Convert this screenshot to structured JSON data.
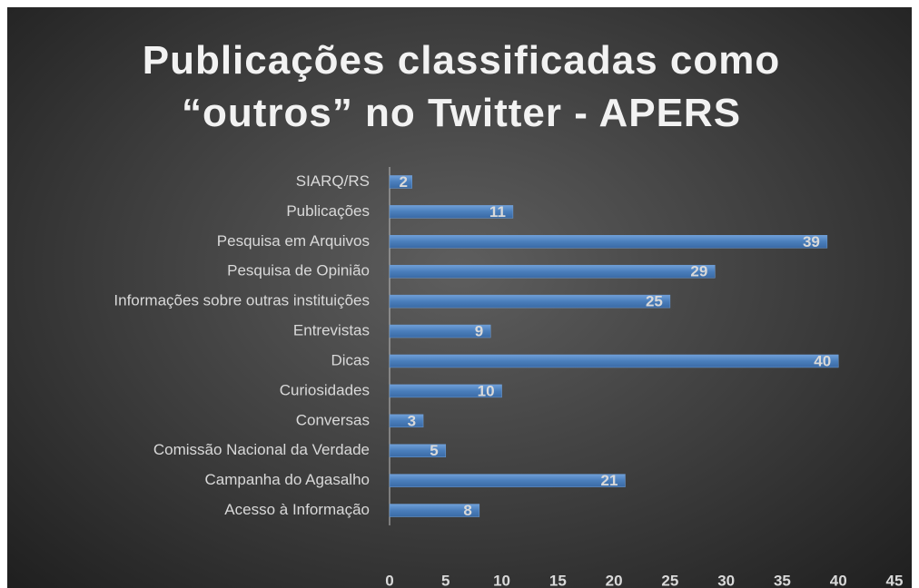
{
  "chart_data": {
    "type": "bar",
    "orientation": "horizontal",
    "title": "Publicações classificadas como “outros” no Twitter - APERS",
    "categories": [
      "SIARQ/RS",
      "Publicações",
      "Pesquisa em Arquivos",
      "Pesquisa de Opinião",
      "Informações sobre outras instituições",
      "Entrevistas",
      "Dicas",
      "Curiosidades",
      "Conversas",
      "Comissão Nacional da Verdade",
      "Campanha do Agasalho",
      "Acesso à Informação"
    ],
    "values": [
      2,
      11,
      39,
      29,
      25,
      9,
      40,
      10,
      3,
      5,
      21,
      8
    ],
    "color": "#4a7ebb",
    "xlim": [
      0,
      45
    ],
    "xticks": [
      0,
      5,
      10,
      15,
      20,
      25,
      30,
      35,
      40,
      45
    ],
    "grid": false
  }
}
